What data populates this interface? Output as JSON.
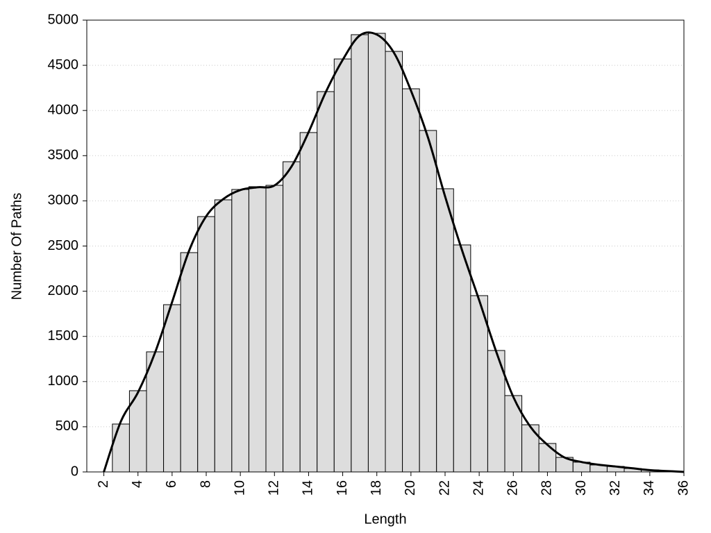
{
  "chart_data": {
    "type": "histogram",
    "xlabel": "Length",
    "ylabel": "Number Of Paths",
    "bins": [
      2.5,
      3.5,
      4.5,
      5.5,
      6.5,
      7.5,
      8.5,
      9.5,
      10.5,
      11.5,
      12.5,
      13.5,
      14.5,
      15.5,
      16.5,
      17.5,
      18.5,
      19.5,
      20.5,
      21.5,
      22.5,
      23.5,
      24.5,
      25.5,
      26.5,
      27.5,
      28.5,
      29.5,
      30.5,
      31.5,
      32.5,
      33.5,
      34.5,
      35.5
    ],
    "counts": [
      530,
      899,
      1329,
      1851,
      2427,
      2826,
      3011,
      3126,
      3157,
      3172,
      3433,
      3756,
      4209,
      4570,
      4839,
      4854,
      4654,
      4240,
      3779,
      3134,
      2512,
      1951,
      1344,
      845,
      522,
      315,
      161,
      108,
      77,
      61,
      38,
      23,
      8
    ],
    "color": "#dddddd",
    "curve": {
      "x": [
        2,
        3,
        4,
        5,
        6,
        7,
        8,
        9,
        10,
        11,
        12,
        13,
        14,
        15,
        16,
        17,
        18,
        19,
        20,
        21,
        22,
        23,
        24,
        25,
        26,
        27,
        28,
        29,
        30,
        31,
        32,
        33,
        34,
        35,
        36
      ],
      "values": [
        0,
        560,
        880,
        1320,
        1880,
        2450,
        2830,
        3020,
        3120,
        3150,
        3170,
        3380,
        3760,
        4200,
        4560,
        4830,
        4840,
        4640,
        4220,
        3700,
        3050,
        2450,
        1900,
        1330,
        830,
        500,
        300,
        160,
        110,
        80,
        60,
        40,
        20,
        10,
        0
      ],
      "color": "#000000"
    },
    "xlim": [
      1,
      36
    ],
    "ylim": [
      0,
      5000
    ],
    "xticks": [
      2,
      4,
      6,
      8,
      10,
      12,
      14,
      16,
      18,
      20,
      22,
      24,
      26,
      28,
      30,
      32,
      34,
      36
    ],
    "yticks": [
      0,
      500,
      1000,
      1500,
      2000,
      2500,
      3000,
      3500,
      4000,
      4500,
      5000
    ],
    "grid": true
  }
}
